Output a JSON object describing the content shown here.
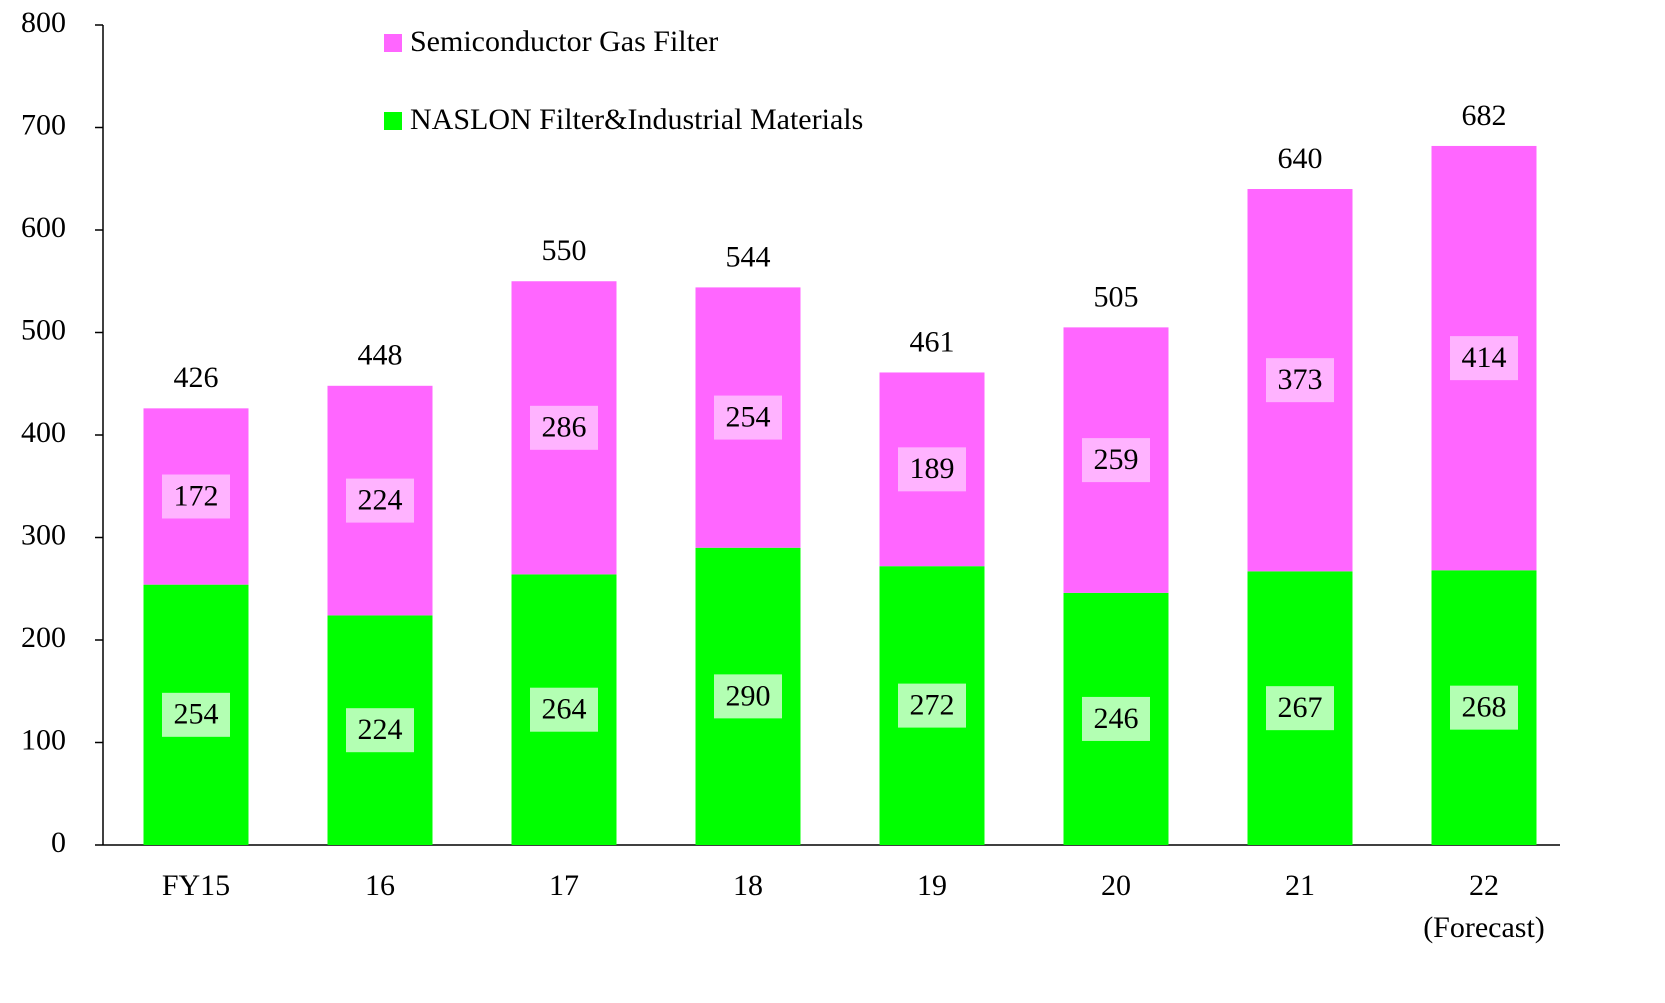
{
  "chart_data": {
    "type": "stacked_bar",
    "categories": [
      "FY15",
      "16",
      "17",
      "18",
      "19",
      "20",
      "21",
      "22"
    ],
    "category_note": "(Forecast)",
    "series": [
      {
        "name": "NASLON Filter&Industrial Materials",
        "color": "#00ff00",
        "label_bg": "#b3ffb3",
        "values": [
          254,
          224,
          264,
          290,
          272,
          246,
          267,
          268
        ]
      },
      {
        "name": "Semiconductor Gas Filter",
        "color": "#ff66ff",
        "label_bg": "#ffb3ff",
        "values": [
          172,
          224,
          286,
          254,
          189,
          259,
          373,
          414
        ]
      }
    ],
    "totals": [
      426,
      448,
      550,
      544,
      461,
      505,
      640,
      682
    ],
    "ylim": [
      0,
      800
    ],
    "yticks": [
      0,
      100,
      200,
      300,
      400,
      500,
      600,
      700,
      800
    ],
    "grid": false
  }
}
